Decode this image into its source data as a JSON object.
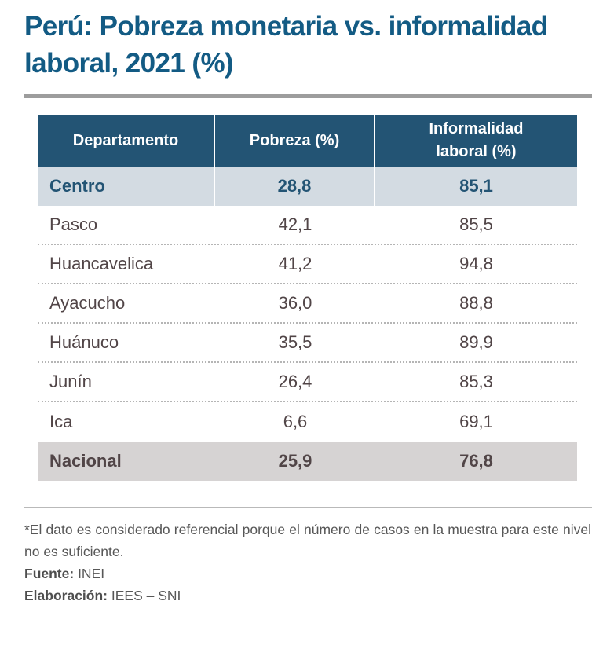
{
  "title": "Perú: Pobreza monetaria vs. informalidad laboral, 2021 (%)",
  "colors": {
    "title": "#135b84",
    "header_bg": "#235474",
    "highlight_row_bg": "#d3dbe2",
    "national_row_bg": "#d6d3d3",
    "rule": "#9d9d9d"
  },
  "table": {
    "headers": [
      "Departamento",
      "Pobreza (%)",
      "Informalidad laboral (%)"
    ],
    "header_lines": {
      "col3_line1": "Informalidad",
      "col3_line2": "laboral (%)"
    },
    "highlight_row": {
      "departamento": "Centro",
      "pobreza": "28,8",
      "informalidad": "85,1"
    },
    "rows": [
      {
        "departamento": "Pasco",
        "pobreza": "42,1",
        "informalidad": "85,5"
      },
      {
        "departamento": "Huancavelica",
        "pobreza": "41,2",
        "informalidad": "94,8"
      },
      {
        "departamento": "Ayacucho",
        "pobreza": "36,0",
        "informalidad": "88,8"
      },
      {
        "departamento": "Huánuco",
        "pobreza": "35,5",
        "informalidad": "89,9"
      },
      {
        "departamento": "Junín",
        "pobreza": "26,4",
        "informalidad": "85,3"
      },
      {
        "departamento": "Ica",
        "pobreza": "6,6",
        "informalidad": "69,1"
      }
    ],
    "total_row": {
      "departamento": "Nacional",
      "pobreza": "25,9",
      "informalidad": "76,8"
    }
  },
  "notes": {
    "footnote": "*El dato es considerado referencial porque el número de casos en la muestra para este nivel no es suficiente.",
    "source_label": "Fuente:",
    "source_value": " INEI",
    "elaboration_label": "Elaboración:",
    "elaboration_value": " IEES – SNI"
  }
}
